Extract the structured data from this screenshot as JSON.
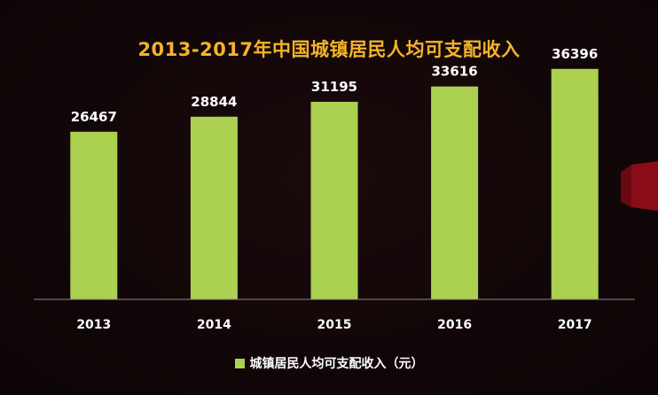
{
  "colors": {
    "title": "#f5b32c",
    "bar": "#acd04f",
    "axis": "#8a8a8a",
    "text": "#ffffff",
    "decoration": "#b5101f"
  },
  "chart_data": {
    "type": "bar",
    "title": "2013-2017年中国城镇居民人均可支配收入",
    "categories": [
      "2013",
      "2014",
      "2015",
      "2016",
      "2017"
    ],
    "series": [
      {
        "name": "城镇居民人均可支配收入（元）",
        "values": [
          26467,
          28844,
          31195,
          33616,
          36396
        ]
      }
    ],
    "data_labels": [
      "26467",
      "28844",
      "31195",
      "33616",
      "36396"
    ],
    "xlabel": "",
    "ylabel": "",
    "ylim": [
      0,
      40000
    ],
    "grid": false,
    "legend_position": "bottom"
  }
}
